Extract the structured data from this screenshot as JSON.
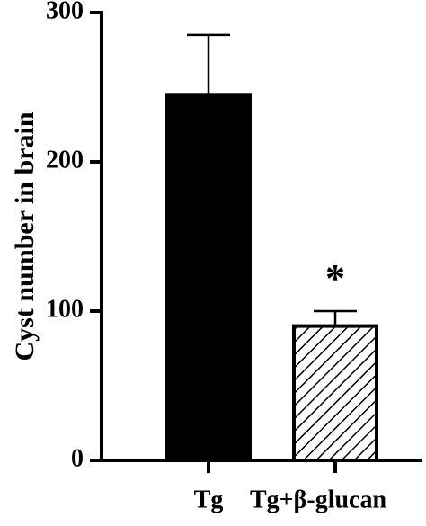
{
  "chart_data": {
    "type": "bar",
    "ylabel": "Cyst number in brain",
    "categories": [
      "Tg",
      "Tg+β-glucan"
    ],
    "values": [
      245,
      90
    ],
    "errors": [
      40,
      10
    ],
    "bar_styles": [
      "solid",
      "hatch"
    ],
    "color": "#000000",
    "value_annotations": [
      null,
      "*"
    ],
    "ylim": [
      0,
      300
    ],
    "yticks": [
      0,
      100,
      200,
      300
    ],
    "grid": false
  }
}
